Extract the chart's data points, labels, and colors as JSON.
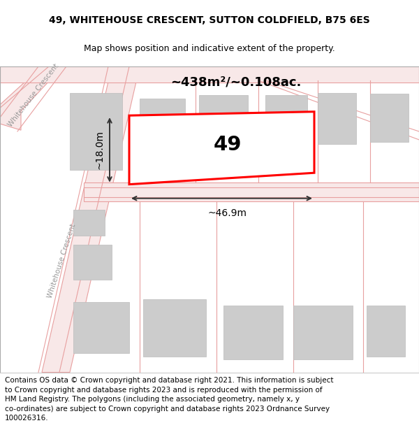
{
  "title_line1": "49, WHITEHOUSE CRESCENT, SUTTON COLDFIELD, B75 6ES",
  "title_line2": "Map shows position and indicative extent of the property.",
  "footer_lines": [
    "Contains OS data © Crown copyright and database right 2021. This information is subject",
    "to Crown copyright and database rights 2023 and is reproduced with the permission of",
    "HM Land Registry. The polygons (including the associated geometry, namely x, y",
    "co-ordinates) are subject to Crown copyright and database rights 2023 Ordnance Survey",
    "100026316."
  ],
  "map_bg": "#f0f0f0",
  "road_color": "#e8a0a0",
  "road_fill": "#f8e8e8",
  "block_fill": "#cccccc",
  "block_edge": "#bbbbbb",
  "property_rect_color": "#ff0000",
  "property_fill": "#ffffff",
  "dimension_color": "#333333",
  "label_49": "49",
  "area_label": "~438m²/~0.108ac.",
  "dim_width": "~46.9m",
  "dim_height": "~18.0m",
  "street_label": "Whitehouse Crescent",
  "border_color": "#cccccc",
  "title_fontsize": 10,
  "subtitle_fontsize": 9,
  "footer_fontsize": 7.5
}
